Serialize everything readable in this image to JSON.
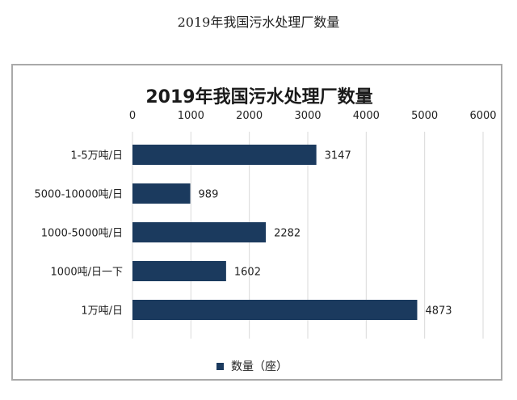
{
  "page": {
    "title": "2019年我国污水处理厂数量"
  },
  "chart_data": {
    "type": "bar",
    "orientation": "horizontal",
    "title": "2019年我国污水处理厂数量",
    "categories": [
      "1-5万吨/日",
      "5000-10000吨/日",
      "1000-5000吨/日",
      "1000吨/日一下",
      "1万吨/日"
    ],
    "values": [
      3147,
      989,
      2282,
      1602,
      4873
    ],
    "series_name": "数量（座）",
    "xlim": [
      0,
      6000
    ],
    "xticks": [
      0,
      1000,
      2000,
      3000,
      4000,
      5000,
      6000
    ],
    "axis_position": "top",
    "grid": true,
    "legend_position": "bottom",
    "colors": {
      "bar": "#1b3a5e",
      "grid": "#d9d9d9",
      "text": "#222222",
      "title": "#1a1a1a"
    }
  }
}
